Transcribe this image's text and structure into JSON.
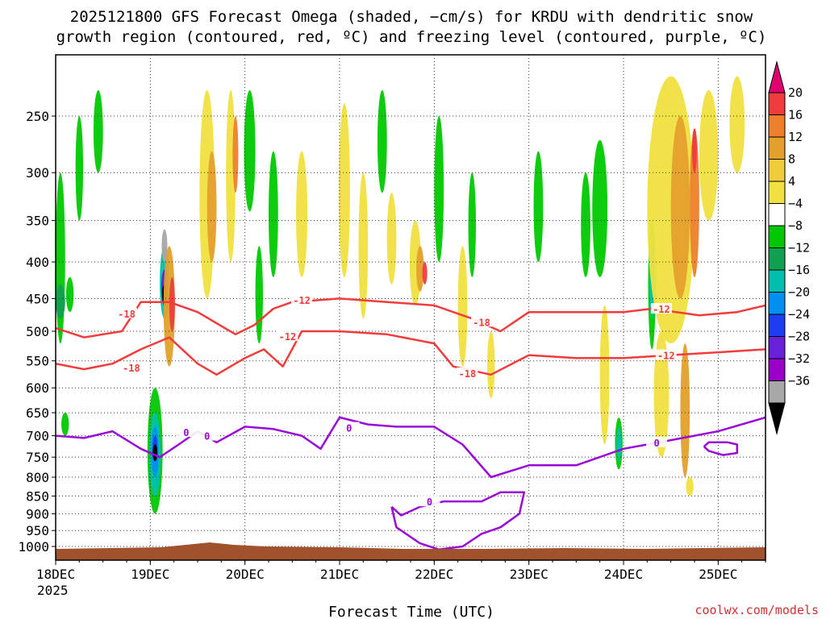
{
  "chart_data": {
    "type": "heatmap",
    "title_lines": [
      "2025121800 GFS Forecast Omega (shaded, −cm/s) for KRDU with dendritic snow",
      "growth region (contoured, red, ºC) and freezing level (contoured, purple, ºC)"
    ],
    "xlabel": "Forecast Time (UTC)",
    "ylabel": "",
    "x_first_label": {
      "day": "18DEC",
      "year": "2025"
    },
    "x_ticks": [
      "18DEC",
      "19DEC",
      "20DEC",
      "21DEC",
      "22DEC",
      "23DEC",
      "24DEC",
      "25DEC"
    ],
    "x_range_days": [
      0,
      7.5
    ],
    "y_ticks": [
      250,
      300,
      350,
      400,
      450,
      500,
      550,
      600,
      650,
      700,
      750,
      800,
      850,
      900,
      950,
      1000
    ],
    "y_range_hpa": [
      205,
      1030
    ],
    "y_scale": "log-pressure",
    "colorbar": {
      "tick_labels": [
        "20",
        "16",
        "12",
        "8",
        "4",
        "−4",
        "−8",
        "−12",
        "−16",
        "−20",
        "−24",
        "−28",
        "−32",
        "−36"
      ],
      "colors": [
        "#e0006f",
        "#f03c3c",
        "#ee7f2c",
        "#e3a02c",
        "#f0cc3c",
        "#f0e040",
        "#ffffff",
        "#00c800",
        "#10a050",
        "#00bfae",
        "#0090f0",
        "#1e3cf0",
        "#6820d8",
        "#9900c8",
        "#a8a8a8",
        "#000000"
      ]
    },
    "series": [
      {
        "name": "-18°C contour",
        "color": "#f23c3c",
        "label": "-18",
        "t": [
          0,
          0.3,
          0.7,
          0.9,
          1.2,
          1.5,
          1.9,
          2.1,
          2.3,
          2.5,
          3.0,
          3.5,
          4.0,
          4.4,
          4.7,
          5.0,
          5.5,
          6.0,
          6.3,
          6.8,
          7.2,
          7.5
        ],
        "p": [
          495,
          510,
          500,
          455,
          455,
          470,
          505,
          490,
          465,
          455,
          450,
          455,
          460,
          480,
          500,
          470,
          470,
          470,
          465,
          475,
          470,
          460
        ]
      },
      {
        "name": "-12°C contour",
        "color": "#f23c3c",
        "label": "-12",
        "t": [
          0,
          0.3,
          0.6,
          0.9,
          1.2,
          1.5,
          1.7,
          2.0,
          2.2,
          2.4,
          2.6,
          3.0,
          3.5,
          4.0,
          4.2,
          4.6,
          5.0,
          5.5,
          6.0,
          6.5,
          7.0,
          7.5
        ],
        "p": [
          555,
          565,
          555,
          530,
          510,
          555,
          575,
          545,
          530,
          560,
          500,
          500,
          505,
          520,
          560,
          575,
          540,
          545,
          545,
          540,
          535,
          530
        ]
      },
      {
        "name": "0°C freezing level (upper)",
        "color": "#9a08d8",
        "label": "0",
        "t": [
          0,
          0.3,
          0.6,
          0.9,
          1.1,
          1.3,
          1.5,
          1.7,
          2.0,
          2.3,
          2.6,
          2.8,
          3.0,
          3.3,
          3.6,
          4.0,
          4.3,
          4.6,
          5.0,
          5.5,
          6.0,
          6.5,
          7.0,
          7.5
        ],
        "p": [
          700,
          705,
          690,
          730,
          750,
          720,
          690,
          715,
          680,
          685,
          700,
          730,
          660,
          675,
          680,
          680,
          720,
          800,
          770,
          770,
          730,
          710,
          690,
          660
        ]
      },
      {
        "name": "0°C freezing level (lower closed)",
        "color": "#9a08d8",
        "label": "0",
        "t": [
          3.55,
          3.65,
          3.85,
          4.1,
          4.5,
          4.7,
          4.95,
          4.9,
          4.7,
          4.5,
          4.3,
          4.05,
          3.85,
          3.6,
          3.55
        ],
        "p": [
          880,
          905,
          880,
          865,
          865,
          840,
          840,
          900,
          940,
          960,
          1000,
          1010,
          990,
          940,
          880
        ]
      },
      {
        "name": "0°C freezing level (small loop)",
        "color": "#9a08d8",
        "label": "",
        "t": [
          6.85,
          6.9,
          7.1,
          7.2,
          7.2,
          7.05,
          6.9,
          6.85
        ],
        "p": [
          725,
          715,
          715,
          720,
          740,
          745,
          735,
          725
        ]
      }
    ],
    "contour_labels": [
      "-18",
      "-12",
      "-18",
      "-12",
      "-18",
      "-12",
      "-18",
      "-12",
      "0",
      "0",
      "0",
      "0",
      "0"
    ]
  },
  "credit": "coolwx.com/models"
}
